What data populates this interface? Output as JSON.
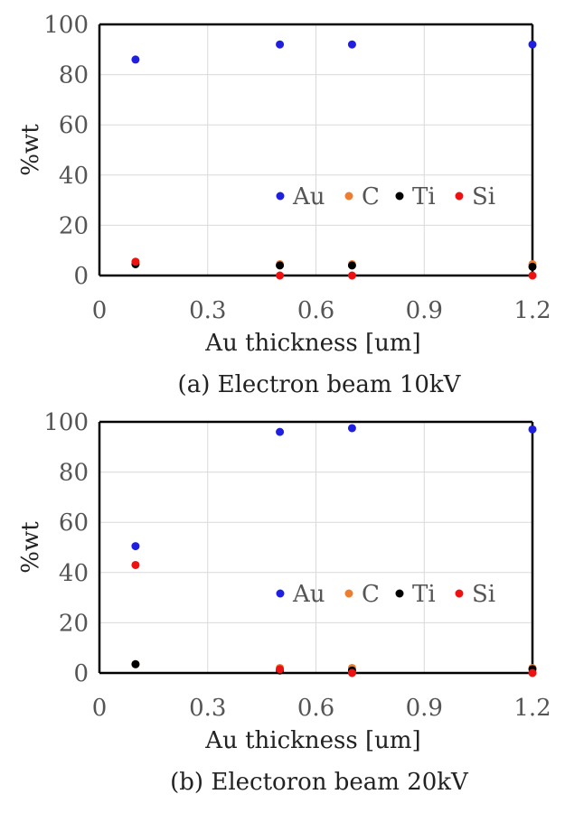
{
  "chart_data": [
    {
      "type": "scatter",
      "caption": "(a) Electron beam 10kV",
      "xlabel": "Au thickness [um]",
      "ylabel": "%wt",
      "xlim": [
        0,
        1.2
      ],
      "ylim": [
        0,
        100
      ],
      "xticks": [
        "0",
        "0.3",
        "0.6",
        "0.9",
        "1.2"
      ],
      "yticks": [
        "0",
        "20",
        "40",
        "60",
        "80",
        "100"
      ],
      "grid": true,
      "legend_position": "right-middle",
      "series": [
        {
          "name": "Au",
          "color": "#1f1fe0",
          "points": [
            [
              0.1,
              86
            ],
            [
              0.5,
              92
            ],
            [
              0.7,
              92
            ],
            [
              1.2,
              92
            ]
          ]
        },
        {
          "name": "C",
          "color": "#ed7d31",
          "points": [
            [
              0.1,
              5
            ],
            [
              0.5,
              4.5
            ],
            [
              0.7,
              4.5
            ],
            [
              1.2,
              4.5
            ]
          ]
        },
        {
          "name": "Ti",
          "color": "#000000",
          "points": [
            [
              0.1,
              4.5
            ],
            [
              0.5,
              4
            ],
            [
              0.7,
              4
            ],
            [
              1.2,
              3.5
            ]
          ]
        },
        {
          "name": "Si",
          "color": "#ee1111",
          "points": [
            [
              0.1,
              5.5
            ],
            [
              0.5,
              0
            ],
            [
              0.7,
              0
            ],
            [
              1.2,
              0
            ]
          ]
        }
      ]
    },
    {
      "type": "scatter",
      "caption": "(b) Electoron beam 20kV",
      "xlabel": "Au thickness [um]",
      "ylabel": "%wt",
      "xlim": [
        0,
        1.2
      ],
      "ylim": [
        0,
        100
      ],
      "xticks": [
        "0",
        "0.3",
        "0.6",
        "0.9",
        "1.2"
      ],
      "yticks": [
        "0",
        "20",
        "40",
        "60",
        "80",
        "100"
      ],
      "grid": true,
      "legend_position": "right-middle",
      "series": [
        {
          "name": "Au",
          "color": "#1f1fe0",
          "points": [
            [
              0.1,
              50.5
            ],
            [
              0.5,
              96
            ],
            [
              0.7,
              97.5
            ],
            [
              1.2,
              97
            ]
          ]
        },
        {
          "name": "C",
          "color": "#ed7d31",
          "points": [
            [
              0.1,
              3.5
            ],
            [
              0.5,
              2
            ],
            [
              0.7,
              2
            ],
            [
              1.2,
              2
            ]
          ]
        },
        {
          "name": "Ti",
          "color": "#000000",
          "points": [
            [
              0.1,
              3.5
            ],
            [
              0.5,
              1
            ],
            [
              0.7,
              1
            ],
            [
              1.2,
              1.5
            ]
          ]
        },
        {
          "name": "Si",
          "color": "#ee1111",
          "points": [
            [
              0.1,
              43
            ],
            [
              0.5,
              1.5
            ],
            [
              0.7,
              0
            ],
            [
              1.2,
              0
            ]
          ]
        }
      ]
    }
  ]
}
